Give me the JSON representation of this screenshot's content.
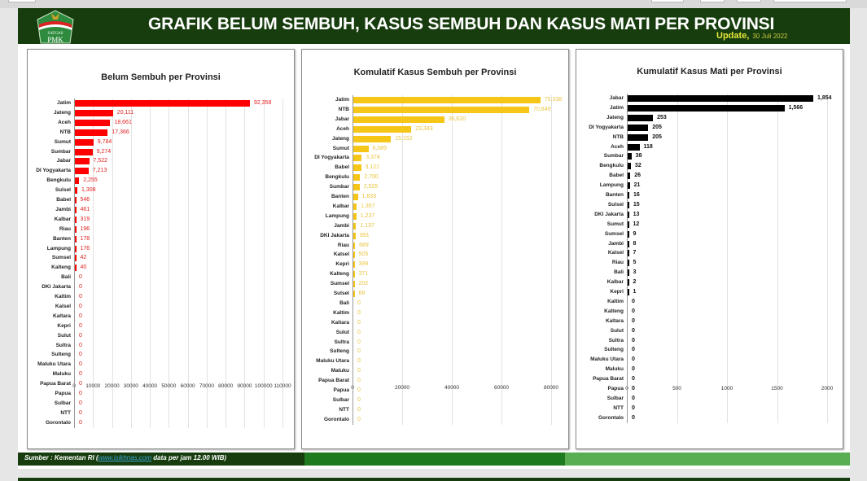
{
  "header": {
    "title": "GRAFIK BELUM SEMBUH, KASUS SEMBUH DAN KASUS MATI PER PROVINSI",
    "update_label": "Update,",
    "update_date": "30 Juli 2022",
    "logo_text_top": "SATGAS",
    "logo_text_mid": "PENANGANAN",
    "logo_text_bottom": "PMK"
  },
  "footer": {
    "source_prefix": "Sumber : Kementan RI (",
    "source_link": "www.isikhnas.com",
    "source_suffix": " data per jam 12.00 WIB)"
  },
  "colors": {
    "header_bg": "#173d0e",
    "belum_sembuh": "#ff0000",
    "sembuh": "#f5c518",
    "mati": "#000000",
    "update_text": "#e8e83a"
  },
  "chart_data": [
    {
      "type": "bar",
      "orientation": "horizontal",
      "title": "Belum Sembuh per Provinsi",
      "color": "#ff0000",
      "label_color": "#e02020",
      "xlim": [
        0,
        110000
      ],
      "xticks": [
        0,
        10000,
        20000,
        30000,
        40000,
        50000,
        60000,
        70000,
        80000,
        90000,
        100000,
        110000
      ],
      "grid": true,
      "categories": [
        "Jatim",
        "Jateng",
        "Aceh",
        "NTB",
        "Sumut",
        "Sumbar",
        "Jabar",
        "DI Yogyakarta",
        "Bengkulu",
        "Sulsel",
        "Babel",
        "Jambi",
        "Kalbar",
        "Riau",
        "Banten",
        "Lampung",
        "Sumsel",
        "Kalteng",
        "Bali",
        "DKI Jakarta",
        "Kaltim",
        "Kalsel",
        "Kaltara",
        "Kepri",
        "Sulut",
        "Sultra",
        "Sulteng",
        "Maluku Utara",
        "Maluku",
        "Papua Barat",
        "Papua",
        "Sulbar",
        "NTT",
        "Gorontalo"
      ],
      "values": [
        92358,
        20111,
        18661,
        17366,
        9784,
        9274,
        7522,
        7213,
        2255,
        1308,
        546,
        461,
        319,
        196,
        178,
        176,
        42,
        40,
        0,
        0,
        0,
        0,
        0,
        0,
        0,
        0,
        0,
        0,
        0,
        0,
        0,
        0,
        0,
        0
      ],
      "labels": [
        "92,358",
        "20,111",
        "18,661",
        "17,366",
        "9,784",
        "9,274",
        "7,522",
        "7,213",
        "2,255",
        "1,308",
        "546",
        "461",
        "319",
        "196",
        "178",
        "176",
        "42",
        "40",
        "0",
        "0",
        "0",
        "0",
        "0",
        "0",
        "0",
        "0",
        "0",
        "0",
        "0",
        "0",
        "0",
        "0",
        "0",
        "0"
      ]
    },
    {
      "type": "bar",
      "orientation": "horizontal",
      "title": "Komulatif Kasus Sembuh per Provinsi",
      "color": "#f5c518",
      "label_color": "#e8c440",
      "xlim": [
        0,
        80000
      ],
      "xticks": [
        0,
        20000,
        40000,
        60000,
        80000
      ],
      "grid": true,
      "categories": [
        "Jatim",
        "NTB",
        "Jabar",
        "Aceh",
        "Jateng",
        "Sumut",
        "DI Yogyakarta",
        "Babel",
        "Bengkulu",
        "Sumbar",
        "Banten",
        "Kalbar",
        "Lampung",
        "Jambi",
        "DKI Jakarta",
        "Riau",
        "Kalsel",
        "Kepri",
        "Kalteng",
        "Sumsel",
        "Sulsel",
        "Bali",
        "Kaltim",
        "Kaltara",
        "Sulut",
        "Sultra",
        "Sulteng",
        "Maluku Utara",
        "Maluku",
        "Papua Barat",
        "Papua",
        "Sulbar",
        "NTT",
        "Gorontalo"
      ],
      "values": [
        75338,
        70849,
        36620,
        23343,
        15152,
        6089,
        3374,
        3121,
        2700,
        2525,
        1833,
        1357,
        1237,
        1137,
        991,
        689,
        505,
        399,
        371,
        202,
        68,
        0,
        0,
        0,
        0,
        0,
        0,
        0,
        0,
        0,
        0,
        0,
        0,
        0
      ],
      "labels": [
        "75,338",
        "70,849",
        "36,620",
        "23,343",
        "15,152",
        "6,089",
        "3,374",
        "3,121",
        "2,700",
        "2,525",
        "1,833",
        "1,357",
        "1,237",
        "1,137",
        "991",
        "689",
        "505",
        "399",
        "371",
        "202",
        "68",
        "0",
        "0",
        "0",
        "0",
        "0",
        "0",
        "0",
        "0",
        "0",
        "0",
        "0",
        "0",
        "0"
      ]
    },
    {
      "type": "bar",
      "orientation": "horizontal",
      "title": "Kumulatif Kasus Mati per Provinsi",
      "color": "#000000",
      "label_color": "#111111",
      "xlim": [
        0,
        2000
      ],
      "xticks": [
        0,
        500,
        1000,
        1500,
        2000
      ],
      "grid": true,
      "categories": [
        "Jabar",
        "Jatim",
        "Jateng",
        "DI Yogyakarta",
        "NTB",
        "Aceh",
        "Sumbar",
        "Bengkulu",
        "Babel",
        "Lampung",
        "Banten",
        "Sulsel",
        "DKI Jakarta",
        "Sumut",
        "Sumsel",
        "Jambi",
        "Kalsel",
        "Riau",
        "Bali",
        "Kalbar",
        "Kepri",
        "Kaltim",
        "Kalteng",
        "Kaltara",
        "Sulut",
        "Sultra",
        "Sulteng",
        "Maluku Utara",
        "Maluku",
        "Papua Barat",
        "Papua",
        "Sulbar",
        "NTT",
        "Gorontalo"
      ],
      "values": [
        1854,
        1566,
        253,
        205,
        205,
        118,
        38,
        32,
        26,
        21,
        16,
        15,
        13,
        12,
        9,
        8,
        7,
        5,
        3,
        2,
        1,
        0,
        0,
        0,
        0,
        0,
        0,
        0,
        0,
        0,
        0,
        0,
        0,
        0
      ],
      "labels": [
        "1,854",
        "1,566",
        "253",
        "205",
        "205",
        "118",
        "38",
        "32",
        "26",
        "21",
        "16",
        "15",
        "13",
        "12",
        "9",
        "8",
        "7",
        "5",
        "3",
        "2",
        "1",
        "0",
        "0",
        "0",
        "0",
        "0",
        "0",
        "0",
        "0",
        "0",
        "0",
        "0",
        "0",
        "0"
      ]
    }
  ]
}
